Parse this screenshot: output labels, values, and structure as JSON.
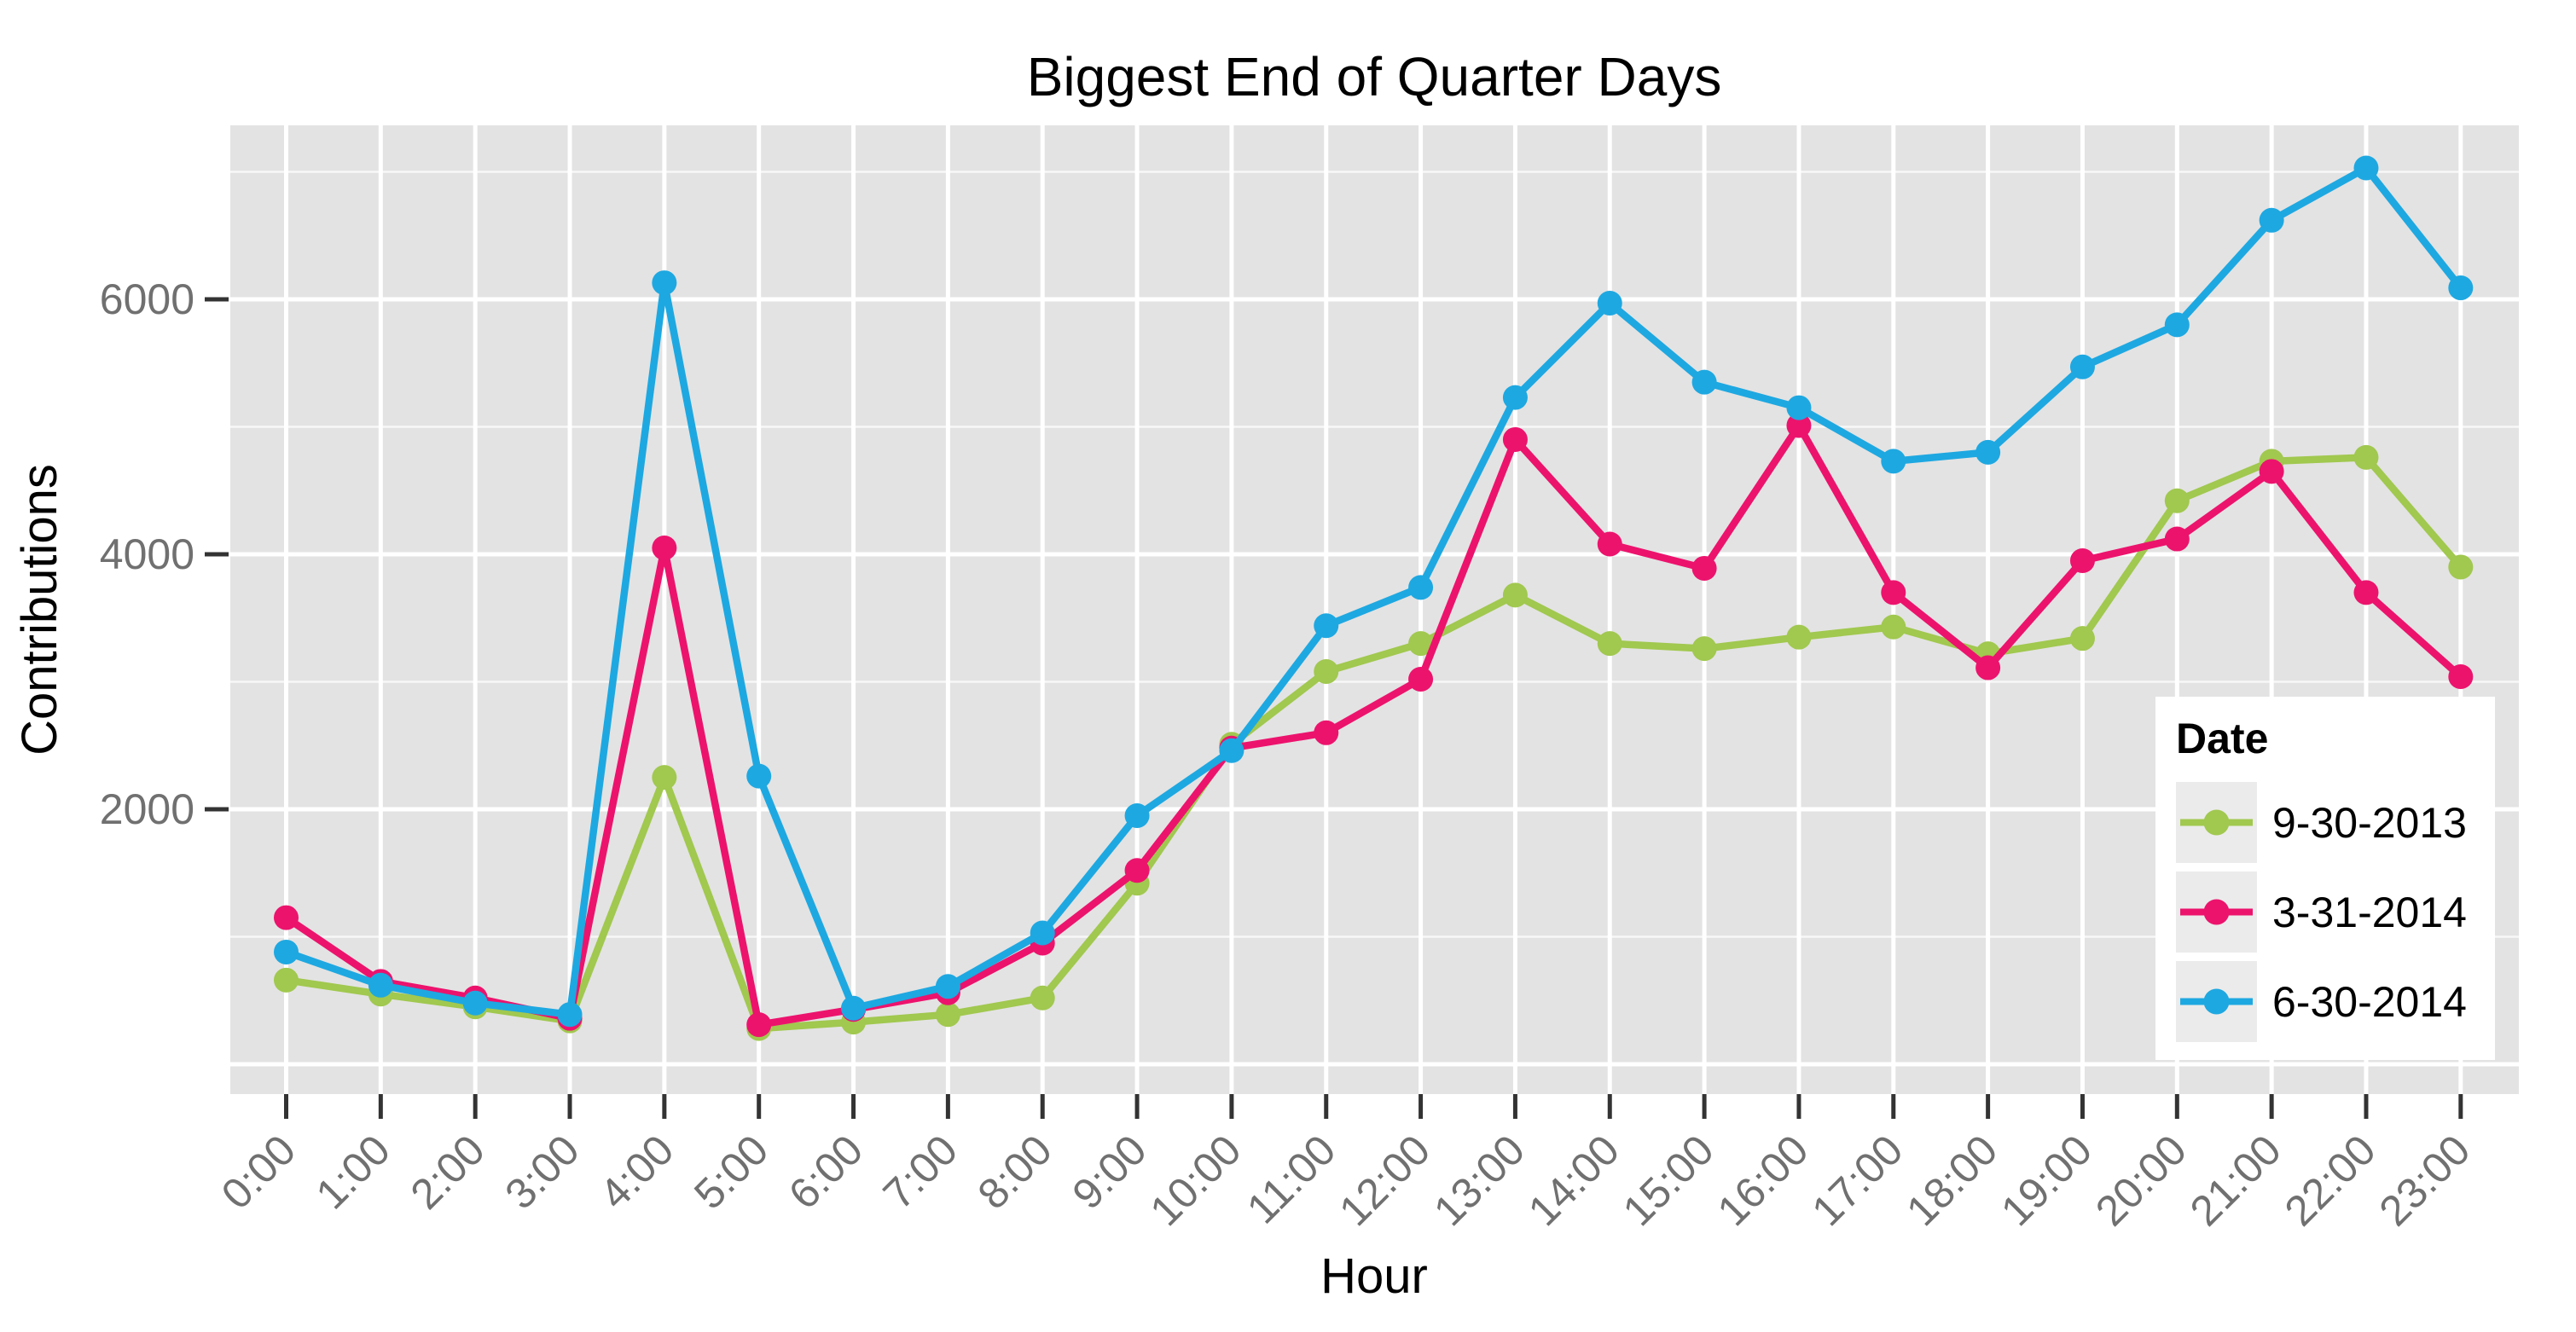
{
  "chart_data": {
    "type": "line",
    "title": "Biggest End of Quarter Days",
    "xlabel": "Hour",
    "ylabel": "Contributions",
    "categories": [
      "0:00",
      "1:00",
      "2:00",
      "3:00",
      "4:00",
      "5:00",
      "6:00",
      "7:00",
      "8:00",
      "9:00",
      "10:00",
      "11:00",
      "12:00",
      "13:00",
      "14:00",
      "15:00",
      "16:00",
      "17:00",
      "18:00",
      "19:00",
      "20:00",
      "21:00",
      "22:00",
      "23:00"
    ],
    "y_axis": {
      "tick_labels": [
        "2000",
        "4000",
        "6000"
      ],
      "ticks": [
        2000,
        4000,
        6000
      ],
      "major_gridlines": [
        0,
        2000,
        4000,
        6000
      ],
      "minor_gridlines": [
        1000,
        3000,
        5000,
        7000
      ],
      "range_shown": [
        -230,
        7370
      ]
    },
    "legend": {
      "title": "Date",
      "position": "inside-bottom-right"
    },
    "series": [
      {
        "name": "9-30-2013",
        "color": "#A1C84F",
        "values": [
          660,
          550,
          450,
          340,
          2250,
          280,
          330,
          390,
          520,
          1420,
          2510,
          3080,
          3300,
          3680,
          3300,
          3260,
          3350,
          3430,
          3220,
          3340,
          4420,
          4730,
          4760,
          3900
        ]
      },
      {
        "name": "3-31-2014",
        "color": "#EC136D",
        "values": [
          1150,
          650,
          520,
          360,
          4050,
          310,
          430,
          560,
          950,
          1520,
          2480,
          2600,
          3020,
          4900,
          4080,
          3890,
          5010,
          3700,
          3110,
          3950,
          4120,
          4650,
          3700,
          3040
        ]
      },
      {
        "name": "6-30-2014",
        "color": "#1EA8E1",
        "values": [
          880,
          620,
          480,
          390,
          6130,
          2260,
          440,
          610,
          1030,
          1950,
          2460,
          3440,
          3740,
          5230,
          5970,
          5350,
          5150,
          4730,
          4800,
          5470,
          5800,
          6620,
          7030,
          6090
        ]
      }
    ]
  },
  "styles": {
    "panel_background": "#E3E3E3",
    "major_gridline_color": "#FFFFFF",
    "minor_gridline_color": "#FFFFFF",
    "tick_mark_color": "#333333",
    "axis_text_color": "#707070",
    "title_color": "#000000",
    "legend_key_background": "#EBEBEB"
  }
}
